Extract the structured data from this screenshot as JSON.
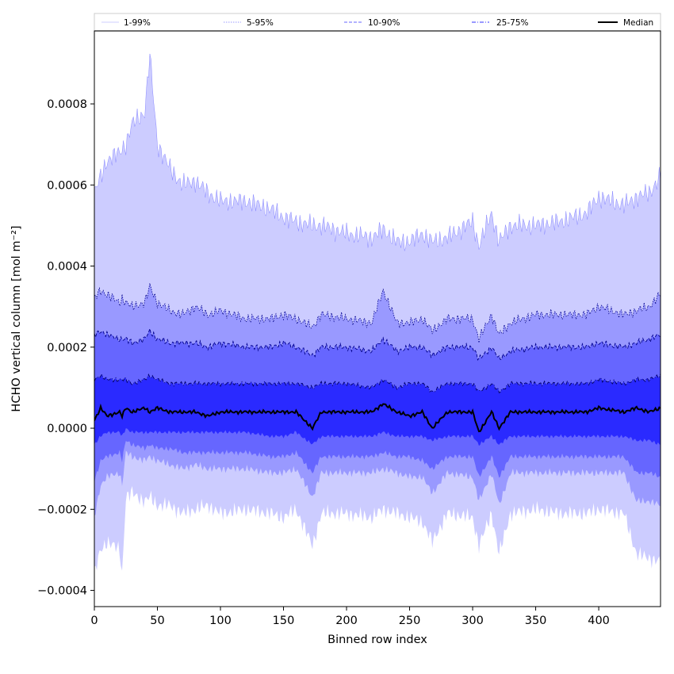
{
  "chart_data": {
    "type": "area",
    "xlabel": "Binned row index",
    "ylabel": "HCHO vertical column [mol m⁻²]",
    "xlim": [
      0,
      449
    ],
    "ylim": [
      -0.00044,
      0.00098
    ],
    "x_ticks": [
      0,
      50,
      100,
      150,
      200,
      250,
      300,
      350,
      400
    ],
    "x_tick_labels": [
      "0",
      "50",
      "100",
      "150",
      "200",
      "250",
      "300",
      "350",
      "400"
    ],
    "y_ticks": [
      -0.0004,
      -0.0002,
      0.0,
      0.0002,
      0.0004,
      0.0006,
      0.0008
    ],
    "y_tick_labels": [
      "−0.0004",
      "−0.0002",
      "0.0000",
      "0.0002",
      "0.0004",
      "0.0006",
      "0.0008"
    ],
    "grid": false,
    "legend_position": "top",
    "legend": [
      {
        "label": "1-99%",
        "color": "#ccccff",
        "style": "thin"
      },
      {
        "label": "5-95%",
        "color": "#9999ff",
        "style": "dotted"
      },
      {
        "label": "10-90%",
        "color": "#6666ff",
        "style": "dashed"
      },
      {
        "label": "25-75%",
        "color": "#3333ff",
        "style": "dashdot"
      },
      {
        "label": "Median",
        "color": "#000000",
        "style": "solid"
      }
    ],
    "x": [
      0,
      5,
      10,
      20,
      22,
      25,
      30,
      40,
      44,
      50,
      60,
      70,
      80,
      90,
      100,
      120,
      140,
      150,
      160,
      173,
      180,
      200,
      220,
      229,
      240,
      250,
      260,
      268,
      280,
      300,
      305,
      315,
      321,
      330,
      350,
      370,
      390,
      400,
      420,
      430,
      440,
      449
    ],
    "series": [
      {
        "name": "1-99%",
        "upper": [
          0.00058,
          0.00062,
          0.00066,
          0.00068,
          0.00069,
          0.0007,
          0.00075,
          0.00078,
          0.00092,
          0.0007,
          0.00064,
          0.0006,
          0.00061,
          0.00058,
          0.00056,
          0.00056,
          0.00054,
          0.00052,
          0.00051,
          0.0005,
          0.0005,
          0.00048,
          0.00047,
          0.00049,
          0.00046,
          0.00046,
          0.00048,
          0.00046,
          0.00047,
          0.00051,
          0.00045,
          0.00053,
          0.00046,
          0.0005,
          0.0005,
          0.00051,
          0.00053,
          0.00057,
          0.00055,
          0.00057,
          0.00058,
          0.00062
        ],
        "lower": [
          -0.00036,
          -0.0003,
          -0.00028,
          -0.0003,
          -0.00036,
          -0.00017,
          -0.00016,
          -0.00018,
          -0.00017,
          -0.00019,
          -0.00019,
          -0.00021,
          -0.0002,
          -0.00019,
          -0.00021,
          -0.0002,
          -0.00021,
          -0.00022,
          -0.0002,
          -0.00029,
          -0.00021,
          -0.00021,
          -0.00022,
          -0.0002,
          -0.00021,
          -0.00022,
          -0.00023,
          -0.00028,
          -0.00021,
          -0.00022,
          -0.00029,
          -0.00021,
          -0.00031,
          -0.00021,
          -0.0002,
          -0.00021,
          -0.00021,
          -0.0002,
          -0.00021,
          -0.00031,
          -0.00032,
          -0.00033
        ]
      },
      {
        "name": "5-95%",
        "upper": [
          0.00032,
          0.00034,
          0.00033,
          0.00031,
          0.00032,
          0.00031,
          0.0003,
          0.00031,
          0.00035,
          0.00031,
          0.00029,
          0.00028,
          0.0003,
          0.00028,
          0.00029,
          0.00027,
          0.00027,
          0.00028,
          0.00027,
          0.00025,
          0.00028,
          0.00027,
          0.00026,
          0.00034,
          0.00026,
          0.00026,
          0.00027,
          0.00024,
          0.00027,
          0.00027,
          0.00022,
          0.00028,
          0.00023,
          0.00026,
          0.00028,
          0.00028,
          0.00028,
          0.0003,
          0.00028,
          0.00029,
          0.0003,
          0.00033
        ],
        "lower": [
          -0.00022,
          -0.00014,
          -0.00012,
          -0.00011,
          -0.00014,
          -6e-05,
          -7e-05,
          -8e-05,
          -7e-05,
          -8e-05,
          -9e-05,
          -0.0001,
          -9e-05,
          -0.0001,
          -0.0001,
          -0.0001,
          -0.00011,
          -0.00011,
          -0.0001,
          -0.00017,
          -0.00011,
          -0.00011,
          -0.00011,
          -0.0001,
          -0.00011,
          -0.00012,
          -0.00012,
          -0.00016,
          -0.00011,
          -0.00012,
          -0.00018,
          -0.00011,
          -0.00019,
          -0.00011,
          -0.00011,
          -0.00011,
          -0.00011,
          -0.00011,
          -0.00011,
          -0.00018,
          -0.00018,
          -0.00019
        ]
      },
      {
        "name": "10-90%",
        "upper": [
          0.00023,
          0.00024,
          0.00023,
          0.00022,
          0.00022,
          0.00022,
          0.00021,
          0.00022,
          0.00024,
          0.00022,
          0.00021,
          0.00021,
          0.00021,
          0.0002,
          0.00021,
          0.0002,
          0.0002,
          0.00021,
          0.0002,
          0.00018,
          0.0002,
          0.0002,
          0.00019,
          0.00022,
          0.00019,
          0.0002,
          0.0002,
          0.00018,
          0.0002,
          0.0002,
          0.00017,
          0.0002,
          0.00017,
          0.00019,
          0.0002,
          0.0002,
          0.0002,
          0.00021,
          0.0002,
          0.00021,
          0.00022,
          0.00023
        ],
        "lower": [
          -0.00013,
          -8e-05,
          -7e-05,
          -6e-05,
          -8e-05,
          -3e-05,
          -4e-05,
          -5e-05,
          -4e-05,
          -5e-05,
          -5e-05,
          -6e-05,
          -6e-05,
          -6e-05,
          -6e-05,
          -6e-05,
          -7e-05,
          -7e-05,
          -6e-05,
          -0.00011,
          -7e-05,
          -7e-05,
          -7e-05,
          -6e-05,
          -7e-05,
          -7e-05,
          -8e-05,
          -0.0001,
          -7e-05,
          -7e-05,
          -0.00012,
          -7e-05,
          -0.00012,
          -7e-05,
          -7e-05,
          -7e-05,
          -7e-05,
          -7e-05,
          -7e-05,
          -0.00011,
          -0.00011,
          -0.00012
        ]
      },
      {
        "name": "25-75%",
        "upper": [
          0.00012,
          0.00013,
          0.00012,
          0.00012,
          0.00012,
          0.00012,
          0.00011,
          0.00012,
          0.00013,
          0.00012,
          0.00011,
          0.00011,
          0.00011,
          0.00011,
          0.00011,
          0.00011,
          0.00011,
          0.00011,
          0.00011,
          0.0001,
          0.00011,
          0.00011,
          0.0001,
          0.00012,
          0.0001,
          0.00011,
          0.00011,
          9e-05,
          0.00011,
          0.00011,
          9e-05,
          0.00011,
          9e-05,
          0.00011,
          0.00011,
          0.00011,
          0.00011,
          0.00012,
          0.00011,
          0.00012,
          0.00012,
          0.00013
        ],
        "lower": [
          -4e-05,
          -2e-05,
          -1e-05,
          -1e-05,
          -2e-05,
          0.0,
          -1e-05,
          -1e-05,
          -1e-05,
          -1e-05,
          -1e-05,
          -1e-05,
          -1e-05,
          -1e-05,
          -1e-05,
          -1e-05,
          -2e-05,
          -2e-05,
          -1e-05,
          -4e-05,
          -2e-05,
          -2e-05,
          -2e-05,
          -1e-05,
          -2e-05,
          -2e-05,
          -2e-05,
          -3e-05,
          -2e-05,
          -2e-05,
          -4e-05,
          -2e-05,
          -4e-05,
          -2e-05,
          -2e-05,
          -2e-05,
          -2e-05,
          -2e-05,
          -2e-05,
          -3e-05,
          -3e-05,
          -4e-05
        ]
      },
      {
        "name": "Median",
        "values": [
          2e-05,
          5e-05,
          3e-05,
          4e-05,
          3e-05,
          5e-05,
          4e-05,
          5e-05,
          4e-05,
          5e-05,
          4e-05,
          4e-05,
          4e-05,
          3e-05,
          4e-05,
          4e-05,
          4e-05,
          4e-05,
          4e-05,
          0.0,
          4e-05,
          4e-05,
          4e-05,
          6e-05,
          4e-05,
          3e-05,
          4e-05,
          0.0,
          4e-05,
          4e-05,
          -1e-05,
          4e-05,
          0.0,
          4e-05,
          4e-05,
          4e-05,
          4e-05,
          5e-05,
          4e-05,
          5e-05,
          4e-05,
          5e-05
        ]
      }
    ]
  }
}
